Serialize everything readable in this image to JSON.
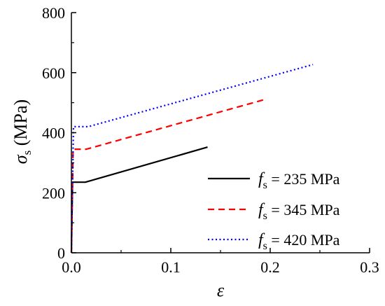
{
  "chart_data": {
    "type": "line",
    "xlabel": "ε",
    "ylabel": {
      "symbol": "σ",
      "subscript": "s",
      "unit": " (MPa)"
    },
    "xlim": [
      0,
      0.3
    ],
    "ylim": [
      0,
      800
    ],
    "xticks": [
      "0.0",
      "0.1",
      "0.2",
      "0.3"
    ],
    "yticks": [
      "0",
      "200",
      "400",
      "600",
      "800"
    ],
    "grid": false,
    "legend_position": "bottom-right",
    "series": [
      {
        "name": "f_s = 235 MPa",
        "legend": {
          "symbol": "f",
          "subscript": "s",
          "text": " = 235 MPa"
        },
        "color": "#000000",
        "dash": "solid",
        "x": [
          0,
          0.00115,
          0.014,
          0.137
        ],
        "y": [
          0,
          235,
          235,
          352
        ]
      },
      {
        "name": "f_s = 345 MPa",
        "legend": {
          "symbol": "f",
          "subscript": "s",
          "text": " = 345 MPa"
        },
        "color": "#ff0000",
        "dash": "dashed",
        "x": [
          0,
          0.0017,
          0.015,
          0.197
        ],
        "y": [
          0,
          345,
          345,
          513
        ]
      },
      {
        "name": "f_s = 420 MPa",
        "legend": {
          "symbol": "f",
          "subscript": "s",
          "text": " = 420 MPa"
        },
        "color": "#0000ff",
        "dash": "dotted",
        "x": [
          0,
          0.0021,
          0.017,
          0.243
        ],
        "y": [
          0,
          420,
          420,
          627
        ]
      }
    ]
  }
}
